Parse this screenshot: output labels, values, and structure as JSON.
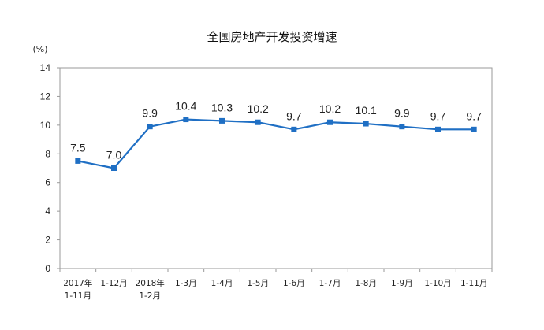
{
  "chart_data": {
    "type": "line",
    "title": "全国房地产开发投资增速",
    "unit": "(%)",
    "categories": [
      [
        "2017年",
        "1-11月"
      ],
      [
        "1-12月"
      ],
      [
        "2018年",
        "1-2月"
      ],
      [
        "1-3月"
      ],
      [
        "1-4月"
      ],
      [
        "1-5月"
      ],
      [
        "1-6月"
      ],
      [
        "1-7月"
      ],
      [
        "1-8月"
      ],
      [
        "1-9月"
      ],
      [
        "1-10月"
      ],
      [
        "1-11月"
      ]
    ],
    "values": [
      7.5,
      7.0,
      9.9,
      10.4,
      10.3,
      10.2,
      9.7,
      10.2,
      10.1,
      9.9,
      9.7,
      9.7
    ],
    "data_labels": [
      "7.5",
      "7.0",
      "9.9",
      "10.4",
      "10.3",
      "10.2",
      "9.7",
      "10.2",
      "10.1",
      "9.9",
      "9.7",
      "9.7"
    ],
    "ylim": [
      0,
      14
    ],
    "yticks": [
      0,
      2,
      4,
      6,
      8,
      10,
      12,
      14
    ],
    "grid": false,
    "legend": "none",
    "line_color": "#1F6FC4",
    "marker": "square"
  }
}
